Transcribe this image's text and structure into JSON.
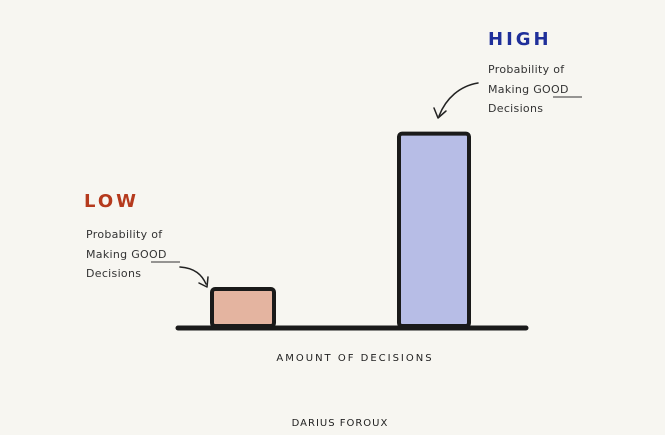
{
  "chart_data": {
    "type": "bar",
    "categories": [
      "LOW",
      "HIGH"
    ],
    "values": [
      1,
      5.2
    ],
    "colors": [
      "#e4b4a0",
      "#b7bde6"
    ],
    "label_colors": [
      "#b53a1d",
      "#1f2f9a"
    ],
    "xlabel": "AMOUNT OF DECISIONS",
    "annotations": [
      {
        "category": "LOW",
        "lines": [
          "Probability of",
          "Making GOOD",
          "Decisions"
        ],
        "underline": "GOOD"
      },
      {
        "category": "HIGH",
        "lines": [
          "Probability of",
          "Making GOOD",
          "Decisions"
        ],
        "underline": "GOOD"
      }
    ],
    "grid": false
  },
  "credit": "DARIUS FOROUX"
}
